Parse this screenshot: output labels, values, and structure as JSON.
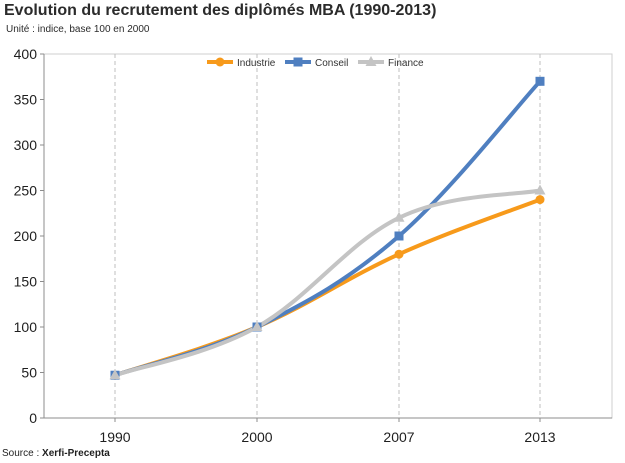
{
  "chart_data": {
    "type": "line",
    "title": "Evolution du recrutement des diplômés MBA (1990-2013)",
    "subtitle": "Unité : indice, base 100 en 2000",
    "source_label": "Source :",
    "source_name": "Xerfi-Precepta",
    "categories": [
      "1990",
      "2000",
      "2007",
      "2013"
    ],
    "ylim": [
      0,
      400
    ],
    "yticks": [
      0,
      50,
      100,
      150,
      200,
      250,
      300,
      350,
      400
    ],
    "xlabel": "",
    "ylabel": "",
    "grid": true,
    "legend_position": "top-center",
    "series": [
      {
        "name": "Industrie",
        "color": "#f79a1b",
        "marker": "circle",
        "values": [
          47,
          100,
          180,
          240
        ]
      },
      {
        "name": "Conseil",
        "color": "#4f7fc0",
        "marker": "square",
        "values": [
          47,
          100,
          200,
          370
        ]
      },
      {
        "name": "Finance",
        "color": "#c4c4c4",
        "marker": "triangle",
        "values": [
          47,
          100,
          220,
          250
        ]
      }
    ]
  }
}
